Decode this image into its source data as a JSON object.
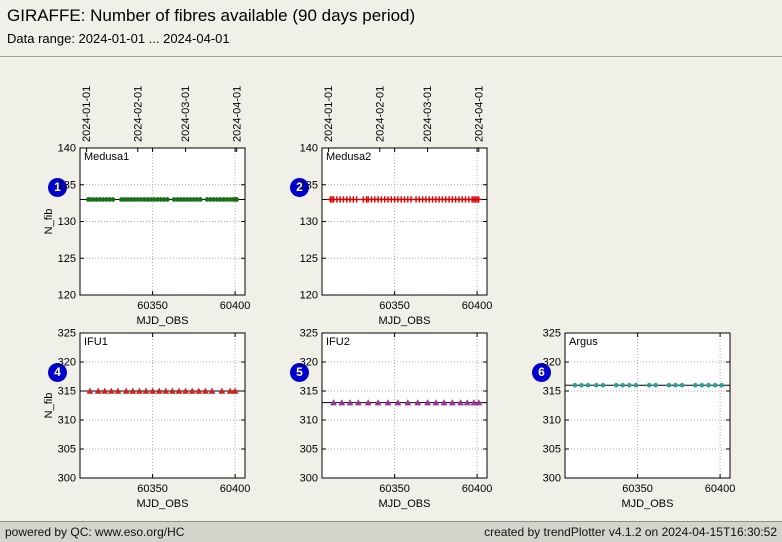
{
  "header": {
    "title": "GIRAFFE: Number of fibres available (90 days period)",
    "subtitle": "Data range: 2024-01-01 ... 2024-04-01"
  },
  "footer": {
    "left": "powered by QC: www.eso.org/HC",
    "right": "created by trendPlotter v4.1.2 on 2024-04-15T16:30:52"
  },
  "ui": {
    "badge_color": "#0000cd",
    "page_background": "#f0efe8"
  },
  "chart_data": [
    {
      "type": "scatter",
      "badge": "1",
      "label": "Medusa1",
      "marker": "dot",
      "color": "#167016",
      "xlabel": "MJD_OBS",
      "ylabel": "N_fib",
      "xlim": [
        60306,
        60406
      ],
      "ylim": [
        120,
        140
      ],
      "xticks": [
        60350,
        60400
      ],
      "yticks": [
        120,
        125,
        130,
        135,
        140
      ],
      "top_dates": [
        {
          "mjd": 60310,
          "label": "2024-01-01"
        },
        {
          "mjd": 60341,
          "label": "2024-02-01"
        },
        {
          "mjd": 60370,
          "label": "2024-03-01"
        },
        {
          "mjd": 60401,
          "label": "2024-04-01"
        }
      ],
      "value": 133,
      "mean": 133,
      "x": [
        60311,
        60312,
        60314,
        60316,
        60318,
        60320,
        60322,
        60324,
        60326,
        60331,
        60333,
        60335,
        60337,
        60339,
        60341,
        60343,
        60345,
        60347,
        60349,
        60351,
        60353,
        60355,
        60357,
        60359,
        60363,
        60365,
        60367,
        60369,
        60371,
        60373,
        60375,
        60377,
        60379,
        60383,
        60385,
        60387,
        60389,
        60391,
        60393,
        60395,
        60397,
        60399,
        60400,
        60401
      ]
    },
    {
      "type": "scatter",
      "badge": "2",
      "label": "Medusa2",
      "marker": "plus",
      "color": "#dd0000",
      "xlabel": "MJD_OBS",
      "ylabel": "",
      "xlim": [
        60306,
        60406
      ],
      "ylim": [
        120,
        140
      ],
      "xticks": [
        60350,
        60400
      ],
      "yticks": [
        120,
        125,
        130,
        135,
        140
      ],
      "top_dates": [
        {
          "mjd": 60310,
          "label": "2024-01-01"
        },
        {
          "mjd": 60341,
          "label": "2024-02-01"
        },
        {
          "mjd": 60370,
          "label": "2024-03-01"
        },
        {
          "mjd": 60401,
          "label": "2024-04-01"
        }
      ],
      "value": 133,
      "mean": 133,
      "x": [
        60311,
        60312,
        60313,
        60315,
        60317,
        60319,
        60321,
        60323,
        60325,
        60327,
        60331,
        60333,
        60334,
        60336,
        60338,
        60340,
        60342,
        60344,
        60346,
        60348,
        60350,
        60352,
        60354,
        60356,
        60358,
        60360,
        60363,
        60365,
        60367,
        60369,
        60371,
        60373,
        60375,
        60377,
        60379,
        60381,
        60383,
        60385,
        60387,
        60389,
        60391,
        60393,
        60395,
        60397,
        60398,
        60399,
        60400,
        60401
      ]
    },
    {
      "type": "scatter",
      "badge": "4",
      "label": "IFU1",
      "marker": "triangle",
      "color": "#cc2222",
      "xlabel": "MJD_OBS",
      "ylabel": "N_fib",
      "xlim": [
        60306,
        60406
      ],
      "ylim": [
        300,
        325
      ],
      "xticks": [
        60350,
        60400
      ],
      "yticks": [
        300,
        305,
        310,
        315,
        320,
        325
      ],
      "top_dates": null,
      "value": 315,
      "mean": 315,
      "x": [
        60312,
        60317,
        60321,
        60325,
        60329,
        60334,
        60338,
        60342,
        60346,
        60350,
        60354,
        60358,
        60362,
        60366,
        60370,
        60374,
        60378,
        60382,
        60386,
        60392,
        60397,
        60400
      ]
    },
    {
      "type": "scatter",
      "badge": "5",
      "label": "IFU2",
      "marker": "triangle",
      "color": "#993399",
      "xlabel": "MJD_OBS",
      "ylabel": "",
      "xlim": [
        60306,
        60406
      ],
      "ylim": [
        300,
        325
      ],
      "xticks": [
        60350,
        60400
      ],
      "yticks": [
        300,
        305,
        310,
        315,
        320,
        325
      ],
      "top_dates": null,
      "value": 313,
      "mean": 313,
      "x": [
        60313,
        60318,
        60323,
        60328,
        60334,
        60340,
        60346,
        60352,
        60358,
        60364,
        60370,
        60375,
        60380,
        60385,
        60390,
        60394,
        60398,
        60401
      ]
    },
    {
      "type": "scatter",
      "badge": "6",
      "label": "Argus",
      "marker": "dot",
      "color": "#2aa198",
      "xlabel": "MJD_OBS",
      "ylabel": "",
      "xlim": [
        60306,
        60406
      ],
      "ylim": [
        300,
        325
      ],
      "xticks": [
        60350,
        60400
      ],
      "yticks": [
        300,
        305,
        310,
        315,
        320,
        325
      ],
      "top_dates": null,
      "value": 316,
      "mean": 316,
      "x": [
        60312,
        60316,
        60320,
        60325,
        60329,
        60337,
        60341,
        60345,
        60349,
        60357,
        60361,
        60369,
        60373,
        60377,
        60385,
        60389,
        60393,
        60397,
        60401
      ]
    }
  ]
}
